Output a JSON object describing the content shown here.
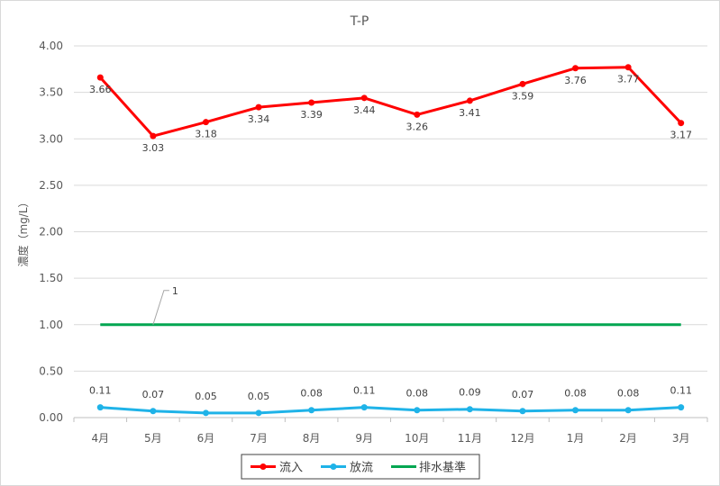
{
  "chart_data": {
    "type": "line",
    "title": "T-P",
    "ylabel": "濃度（mg/L）",
    "xlabel": "",
    "categories": [
      "4月",
      "5月",
      "6月",
      "7月",
      "8月",
      "9月",
      "10月",
      "11月",
      "12月",
      "1月",
      "2月",
      "3月"
    ],
    "ylim": [
      0,
      4
    ],
    "yticks": [
      "0.00",
      "0.50",
      "1.00",
      "1.50",
      "2.00",
      "2.50",
      "3.00",
      "3.50",
      "4.00"
    ],
    "grid": true,
    "legend_position": "bottom",
    "series": [
      {
        "name": "流入",
        "color": "#ff0000",
        "values": [
          3.66,
          3.03,
          3.18,
          3.34,
          3.39,
          3.44,
          3.26,
          3.41,
          3.59,
          3.76,
          3.77,
          3.17
        ],
        "labels": [
          "3.66",
          "3.03",
          "3.18",
          "3.34",
          "3.39",
          "3.44",
          "3.26",
          "3.41",
          "3.59",
          "3.76",
          "3.77",
          "3.17"
        ],
        "markers": true
      },
      {
        "name": "放流",
        "color": "#1fb3e8",
        "values": [
          0.11,
          0.07,
          0.05,
          0.05,
          0.08,
          0.11,
          0.08,
          0.09,
          0.07,
          0.08,
          0.08,
          0.11
        ],
        "labels": [
          "0.11",
          "0.07",
          "0.05",
          "0.05",
          "0.08",
          "0.11",
          "0.08",
          "0.09",
          "0.07",
          "0.08",
          "0.08",
          "0.11"
        ],
        "markers": true
      },
      {
        "name": "排水基準",
        "color": "#00a651",
        "values": [
          1,
          1,
          1,
          1,
          1,
          1,
          1,
          1,
          1,
          1,
          1,
          1
        ],
        "markers": false
      }
    ],
    "annotation": {
      "text": "1"
    }
  }
}
